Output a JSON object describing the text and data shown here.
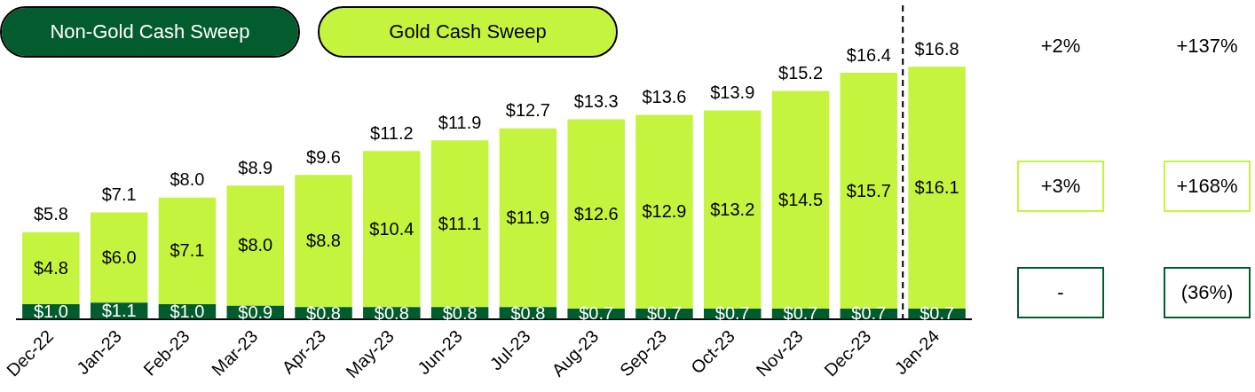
{
  "chart_data": {
    "type": "bar",
    "stacked": true,
    "tick_labels": "x",
    "legend": "top left",
    "categories": [
      "Dec-22",
      "Jan-23",
      "Feb-23",
      "Mar-23",
      "Apr-23",
      "May-23",
      "Jun-23",
      "Jul-23",
      "Aug-23",
      "Sep-23",
      "Oct-23",
      "Nov-23",
      "Dec-23",
      "Jan-24"
    ],
    "series": [
      {
        "name": "Non-Gold Cash Sweep",
        "color": "#035c2e",
        "values": [
          1.0,
          1.1,
          1.0,
          0.9,
          0.8,
          0.8,
          0.8,
          0.8,
          0.7,
          0.7,
          0.7,
          0.7,
          0.7,
          0.7
        ],
        "value_labels": [
          "$1.0",
          "$1.1",
          "$1.0",
          "$0.9",
          "$0.8",
          "$0.8",
          "$0.8",
          "$0.8",
          "$0.7",
          "$0.7",
          "$0.7",
          "$0.7",
          "$0.7",
          "$0.7"
        ]
      },
      {
        "name": "Gold Cash Sweep",
        "color": "#c5f43e",
        "values": [
          4.8,
          6.0,
          7.1,
          8.0,
          8.8,
          10.4,
          11.1,
          11.9,
          12.6,
          12.9,
          13.2,
          14.5,
          15.7,
          16.1
        ],
        "value_labels": [
          "$4.8",
          "$6.0",
          "$7.1",
          "$8.0",
          "$8.8",
          "$10.4",
          "$11.1",
          "$11.9",
          "$12.6",
          "$12.9",
          "$13.2",
          "$14.5",
          "$15.7",
          "$16.1"
        ]
      }
    ],
    "totals": [
      "$5.8",
      "$7.1",
      "$8.0",
      "$8.9",
      "$9.6",
      "$11.2",
      "$11.9",
      "$12.7",
      "$13.3",
      "$13.6",
      "$13.9",
      "$15.2",
      "$16.4",
      "$16.8"
    ],
    "ref_lines": [
      {
        "axis": "x",
        "value": "Jan-24",
        "color": "#000000",
        "line_style": "dashed"
      }
    ],
    "annotations": [
      "+2%",
      "+137%",
      "+3%",
      "+168%",
      "-",
      "(36%)"
    ]
  }
}
